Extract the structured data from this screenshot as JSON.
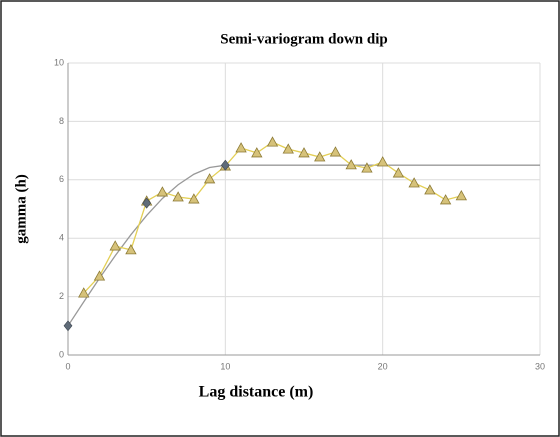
{
  "chart_data": {
    "type": "scatter",
    "title": "Semi-variogram down dip",
    "x_label": "Lag distance (m)",
    "y_label": "gamma (h)",
    "xlim": [
      0,
      30
    ],
    "xticks": [
      0,
      10,
      20,
      30
    ],
    "ylim": [
      0,
      10
    ],
    "yticks": [
      0,
      2,
      4,
      6,
      8,
      10
    ],
    "grid": true,
    "series": [
      {
        "color": "#999999",
        "line": true,
        "marker": "none",
        "x": [
          0,
          1,
          2,
          3,
          4,
          5,
          6,
          7,
          8,
          9,
          10,
          30
        ],
        "values": [
          1,
          1.82,
          2.63,
          3.4,
          4.12,
          4.78,
          5.36,
          5.83,
          6.19,
          6.42,
          6.5,
          6.5
        ]
      },
      {
        "color": "#e3cf55",
        "line": true,
        "marker": "triangle",
        "x": [
          1,
          2,
          3,
          4,
          5,
          6,
          7,
          8,
          9,
          10,
          11,
          12,
          13,
          14,
          15,
          16,
          17,
          18,
          19,
          20,
          21,
          22,
          23,
          24,
          25
        ],
        "values": [
          2.12,
          2.7,
          3.73,
          3.6,
          5.27,
          5.58,
          5.41,
          5.34,
          6.03,
          6.47,
          7.09,
          6.92,
          7.29,
          7.05,
          6.92,
          6.78,
          6.95,
          6.51,
          6.4,
          6.61,
          6.23,
          5.89,
          5.65,
          5.31,
          5.45
        ]
      },
      {
        "color": "#5f6b78",
        "line": false,
        "marker": "diamond",
        "x": [
          0,
          5,
          10
        ],
        "values": [
          1,
          5.2,
          6.5
        ]
      }
    ]
  }
}
